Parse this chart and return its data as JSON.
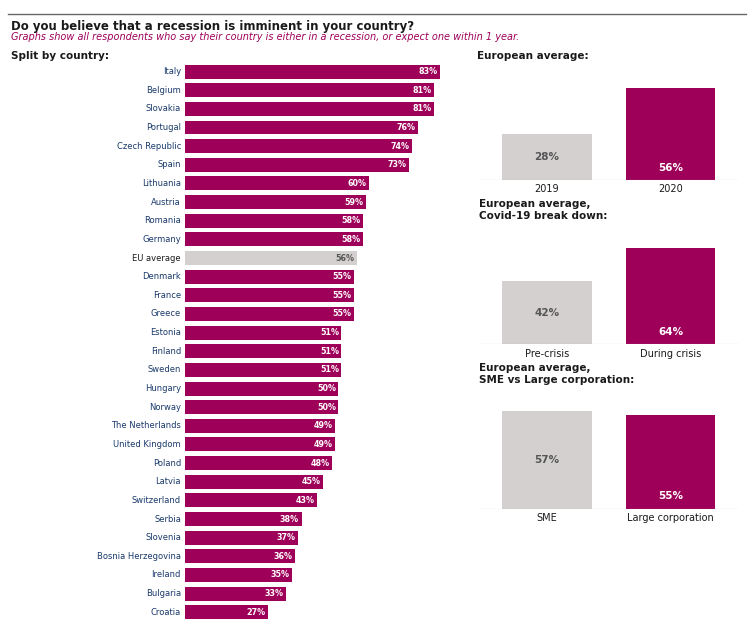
{
  "title": "Do you believe that a recession is imminent in your country?",
  "subtitle": "Graphs show all respondents who say their country is either in a recession, or expect one within 1 year.",
  "left_label": "Split by country:",
  "right_label": "European average:",
  "countries": [
    "Italy",
    "Belgium",
    "Slovakia",
    "Portugal",
    "Czech Republic",
    "Spain",
    "Lithuania",
    "Austria",
    "Romania",
    "Germany",
    "EU average",
    "Denmark",
    "France",
    "Greece",
    "Estonia",
    "Finland",
    "Sweden",
    "Hungary",
    "Norway",
    "The Netherlands",
    "United Kingdom",
    "Poland",
    "Latvia",
    "Switzerland",
    "Serbia",
    "Slovenia",
    "Bosnia Herzegovina",
    "Ireland",
    "Bulgaria",
    "Croatia"
  ],
  "values": [
    83,
    81,
    81,
    76,
    74,
    73,
    60,
    59,
    58,
    58,
    56,
    55,
    55,
    55,
    51,
    51,
    51,
    50,
    50,
    49,
    49,
    48,
    45,
    43,
    38,
    37,
    36,
    35,
    33,
    27
  ],
  "bar_color_main": "#9e0059",
  "bar_color_eu": "#d4d0d0",
  "label_color_main": "#ffffff",
  "label_color_eu": "#555555",
  "text_color_title": "#1a1a1a",
  "text_color_subtitle": "#9e0059",
  "text_color_country": "#1a3a6b",
  "top_line_color": "#666666",
  "european_avg": {
    "section_title": "European average:",
    "label1": "2019",
    "label2": "2020",
    "val1": 28,
    "val2": 56,
    "color1": "#d4d0d0",
    "color2": "#9e0059"
  },
  "covid_breakdown": {
    "section_title": "European average,\nCovid-19 break down:",
    "label1": "Pre-crisis",
    "label2": "During crisis",
    "val1": 42,
    "val2": 64,
    "color1": "#d4d0d0",
    "color2": "#9e0059"
  },
  "sme_large": {
    "section_title": "European average,\nSME vs Large corporation:",
    "label1": "SME",
    "label2": "Large corporation",
    "val1": 57,
    "val2": 55,
    "color1": "#d4d0d0",
    "color2": "#9e0059"
  }
}
